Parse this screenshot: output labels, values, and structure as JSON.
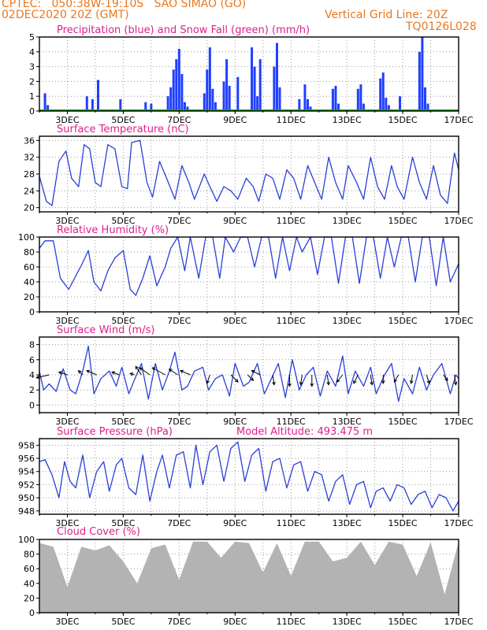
{
  "header": {
    "line1": "CPTEC:   050:38W-19:10S   SAO SIMAO (GO)",
    "line2": "02DEC2020 20Z (GMT)",
    "grid_note": "Vertical Grid Line: 20Z",
    "code": "TQ0126L028"
  },
  "colors": {
    "header": "#e8771f",
    "title": "#e01e8c",
    "precip": "#1f3fff",
    "snow": "#1e9e1e",
    "line": "#2a3fd8",
    "cloud": "#b3b3b3",
    "grid": "#9a9a9a"
  },
  "x_ticks": [
    "3DEC",
    "5DEC",
    "7DEC",
    "9DEC",
    "11DEC",
    "13DEC",
    "15DEC",
    "17DEC"
  ],
  "chart_data": [
    {
      "type": "bar",
      "title": "Precipitation (blue) and Snow Fall (green) (mm/h)",
      "ylim": [
        0,
        5
      ],
      "yticks": [
        0,
        1,
        2,
        3,
        4,
        5
      ],
      "series": [
        {
          "name": "Precipitation",
          "x": [
            2.2,
            2.3,
            3.7,
            3.9,
            4.1,
            4.9,
            5.8,
            6.0,
            6.6,
            6.7,
            6.8,
            6.9,
            7.0,
            7.1,
            7.2,
            7.3,
            7.9,
            8.0,
            8.1,
            8.2,
            8.3,
            8.6,
            8.7,
            8.8,
            9.1,
            9.6,
            9.7,
            9.8,
            9.9,
            10.4,
            10.5,
            10.6,
            11.3,
            11.5,
            11.6,
            11.7,
            12.5,
            12.6,
            12.7,
            13.4,
            13.5,
            13.6,
            14.2,
            14.3,
            14.4,
            14.5,
            14.9,
            15.6,
            15.7,
            15.8,
            15.9
          ],
          "values": [
            1.2,
            0.4,
            1.0,
            0.8,
            2.1,
            0.8,
            0.6,
            0.5,
            1.0,
            1.6,
            2.8,
            3.5,
            4.2,
            2.5,
            0.6,
            0.3,
            1.2,
            2.8,
            4.3,
            1.5,
            0.6,
            2.0,
            3.5,
            1.7,
            2.3,
            4.3,
            3.0,
            1.0,
            3.5,
            3.0,
            4.6,
            1.6,
            0.8,
            1.8,
            0.8,
            0.3,
            1.5,
            1.7,
            0.5,
            1.5,
            1.8,
            0.5,
            2.2,
            2.6,
            0.9,
            0.4,
            1.0,
            4.0,
            5.0,
            1.6,
            0.5
          ]
        },
        {
          "name": "Snow Fall",
          "x": [
            2.0,
            17.0
          ],
          "values": [
            0,
            0
          ]
        }
      ]
    },
    {
      "type": "line",
      "title": "Surface Temperature (nC)",
      "ylim": [
        19,
        37
      ],
      "yticks": [
        20,
        24,
        28,
        32,
        36
      ],
      "x": [
        2.0,
        2.25,
        2.45,
        2.7,
        2.95,
        3.15,
        3.4,
        3.6,
        3.8,
        4.0,
        4.2,
        4.45,
        4.7,
        4.95,
        5.15,
        5.3,
        5.6,
        5.85,
        6.05,
        6.3,
        6.55,
        6.85,
        7.1,
        7.35,
        7.55,
        7.9,
        8.1,
        8.35,
        8.6,
        8.85,
        9.1,
        9.4,
        9.65,
        9.85,
        10.1,
        10.35,
        10.6,
        10.85,
        11.1,
        11.35,
        11.6,
        11.85,
        12.1,
        12.35,
        12.6,
        12.85,
        13.05,
        13.35,
        13.6,
        13.85,
        14.1,
        14.35,
        14.6,
        14.8,
        15.05,
        15.35,
        15.6,
        15.85,
        16.1,
        16.35,
        16.6,
        16.85,
        17.0
      ],
      "values": [
        27.5,
        21.5,
        20.5,
        31,
        33.5,
        27,
        25,
        35,
        34,
        26,
        25,
        35,
        34,
        25,
        24.5,
        35.5,
        36,
        26,
        22.5,
        31,
        27,
        22,
        30,
        26,
        22,
        28,
        25,
        21.5,
        25,
        24,
        22,
        27,
        25,
        21.5,
        28,
        27,
        22,
        29,
        27,
        22,
        30,
        26,
        22,
        32,
        26,
        22,
        30,
        26,
        22,
        32,
        25,
        22,
        30,
        25,
        22,
        32,
        26,
        22,
        30,
        23,
        21,
        33,
        29
      ]
    },
    {
      "type": "line",
      "title": "Relative Humidity (%)",
      "ylim": [
        0,
        100
      ],
      "yticks": [
        0,
        20,
        40,
        60,
        80,
        100
      ],
      "x": [
        2.0,
        2.2,
        2.5,
        2.75,
        3.05,
        3.3,
        3.5,
        3.75,
        3.95,
        4.2,
        4.45,
        4.7,
        5.0,
        5.25,
        5.45,
        5.7,
        5.95,
        6.2,
        6.5,
        6.7,
        6.95,
        7.2,
        7.4,
        7.7,
        7.95,
        8.2,
        8.45,
        8.65,
        8.95,
        9.2,
        9.45,
        9.7,
        9.95,
        10.2,
        10.45,
        10.7,
        10.95,
        11.2,
        11.4,
        11.7,
        11.95,
        12.2,
        12.45,
        12.7,
        12.95,
        13.2,
        13.45,
        13.7,
        13.95,
        14.2,
        14.45,
        14.7,
        14.95,
        15.2,
        15.45,
        15.7,
        15.95,
        16.2,
        16.45,
        16.7,
        16.95,
        17.0
      ],
      "values": [
        85,
        95,
        95,
        45,
        30,
        48,
        62,
        82,
        40,
        28,
        55,
        72,
        82,
        30,
        22,
        45,
        75,
        35,
        60,
        85,
        100,
        55,
        100,
        45,
        100,
        100,
        45,
        100,
        80,
        100,
        100,
        60,
        100,
        100,
        45,
        100,
        55,
        100,
        80,
        100,
        50,
        100,
        100,
        38,
        100,
        100,
        38,
        100,
        100,
        45,
        100,
        60,
        100,
        100,
        40,
        100,
        100,
        35,
        100,
        40,
        60,
        65
      ]
    },
    {
      "type": "line",
      "title": "Surface Wind (m/s)",
      "ylim": [
        -1,
        9
      ],
      "yticks": [
        0,
        2,
        4,
        6,
        8
      ],
      "x": [
        2.0,
        2.15,
        2.35,
        2.6,
        2.85,
        3.1,
        3.3,
        3.55,
        3.75,
        3.95,
        4.2,
        4.5,
        4.75,
        4.95,
        5.2,
        5.45,
        5.65,
        5.9,
        6.15,
        6.4,
        6.65,
        6.85,
        7.1,
        7.3,
        7.55,
        7.85,
        8.05,
        8.3,
        8.55,
        8.8,
        9.0,
        9.3,
        9.5,
        9.8,
        10.05,
        10.3,
        10.55,
        10.8,
        11.05,
        11.3,
        11.55,
        11.8,
        12.05,
        12.3,
        12.6,
        12.85,
        13.05,
        13.3,
        13.6,
        13.85,
        14.05,
        14.35,
        14.6,
        14.85,
        15.05,
        15.35,
        15.6,
        15.85,
        16.1,
        16.4,
        16.7,
        16.9,
        17.0
      ],
      "values": [
        4.5,
        2.0,
        2.8,
        1.8,
        4.8,
        2.0,
        1.5,
        4.5,
        7.8,
        1.5,
        3.5,
        4.5,
        2.5,
        5.0,
        1.5,
        3.8,
        5.5,
        0.8,
        5.5,
        2.0,
        4.5,
        7.0,
        2.0,
        2.5,
        4.5,
        5.0,
        2.0,
        3.5,
        4.0,
        1.2,
        5.5,
        2.5,
        3.0,
        5.5,
        1.5,
        3.5,
        5.5,
        1.0,
        6.0,
        2.0,
        4.0,
        5.0,
        1.2,
        4.5,
        2.5,
        6.5,
        1.5,
        4.5,
        2.5,
        5.0,
        1.5,
        4.0,
        5.5,
        0.5,
        3.5,
        1.5,
        5.0,
        2.0,
        4.0,
        5.5,
        1.5,
        4.0,
        3.5
      ],
      "arrows": {
        "x": [
          2.35,
          3.0,
          3.55,
          4.05,
          4.85,
          5.4,
          5.65,
          5.95,
          6.5,
          6.95,
          7.4,
          8.1,
          8.85,
          9.45,
          9.9,
          10.35,
          10.95,
          11.4,
          11.75,
          12.3,
          12.85,
          13.4,
          13.85,
          14.3,
          14.85,
          15.35,
          15.85,
          16.45,
          16.85
        ],
        "u": [
          -0.9,
          -0.6,
          -0.3,
          -0.7,
          -0.5,
          -0.3,
          -0.4,
          -0.7,
          -0.9,
          -0.6,
          -0.7,
          -0.2,
          0.5,
          0.4,
          -0.6,
          0.1,
          0.0,
          -0.1,
          0.0,
          0.1,
          -0.4,
          -0.3,
          0.1,
          0.0,
          -0.3,
          -0.1,
          0.2,
          0.3,
          0.1
        ],
        "v": [
          -0.2,
          0.2,
          0.3,
          0.3,
          0.2,
          0.1,
          0.6,
          0.5,
          0.5,
          0.4,
          0.3,
          -0.6,
          -0.5,
          -0.4,
          0.3,
          -0.7,
          -0.8,
          -0.7,
          -0.8,
          -0.7,
          -0.5,
          -0.6,
          -0.7,
          -0.6,
          -0.5,
          -0.6,
          -0.6,
          -0.4,
          -0.7
        ]
      }
    },
    {
      "type": "line",
      "title": "Surface Pressure (hPa)",
      "subtitle": "Model Altitude: 493.475 m",
      "ylim": [
        947.5,
        959
      ],
      "yticks": [
        948,
        950,
        952,
        954,
        956,
        958
      ],
      "x": [
        2.0,
        2.2,
        2.45,
        2.7,
        2.9,
        3.1,
        3.3,
        3.55,
        3.8,
        4.05,
        4.3,
        4.5,
        4.75,
        4.95,
        5.2,
        5.45,
        5.7,
        5.95,
        6.2,
        6.4,
        6.65,
        6.9,
        7.15,
        7.4,
        7.6,
        7.85,
        8.1,
        8.35,
        8.6,
        8.85,
        9.1,
        9.35,
        9.6,
        9.85,
        10.1,
        10.35,
        10.6,
        10.85,
        11.1,
        11.35,
        11.6,
        11.85,
        12.1,
        12.35,
        12.6,
        12.85,
        13.1,
        13.35,
        13.6,
        13.85,
        14.05,
        14.3,
        14.55,
        14.8,
        15.05,
        15.3,
        15.55,
        15.8,
        16.05,
        16.3,
        16.55,
        16.8,
        17.0
      ],
      "values": [
        955.5,
        955.8,
        953.5,
        950,
        955.5,
        952.5,
        951.5,
        956.5,
        950,
        954,
        955.5,
        951,
        955,
        956,
        951.5,
        950.5,
        956.5,
        949.5,
        954,
        956.5,
        951.5,
        956.5,
        957,
        951.5,
        958,
        952,
        957,
        958,
        952.5,
        957.5,
        958.5,
        952.5,
        956.5,
        957.5,
        951,
        955.5,
        956,
        951.5,
        955,
        955.5,
        951,
        954,
        953.5,
        949.5,
        952.5,
        953.5,
        949,
        952,
        952.5,
        948.5,
        951,
        951.5,
        949.5,
        952,
        951.5,
        949,
        950.5,
        951,
        948.5,
        950.5,
        950,
        948,
        949.5
      ]
    },
    {
      "type": "bar",
      "title": "Cloud Cover (%)",
      "ylim": [
        0,
        100
      ],
      "yticks": [
        0,
        20,
        40,
        60,
        80,
        100
      ],
      "x": [
        2.0,
        2.5,
        3.0,
        3.5,
        4.0,
        4.5,
        5.0,
        5.5,
        6.0,
        6.5,
        7.0,
        7.5,
        8.0,
        8.5,
        9.0,
        9.5,
        10.0,
        10.5,
        11.0,
        11.5,
        12.0,
        12.5,
        13.0,
        13.5,
        14.0,
        14.5,
        15.0,
        15.5,
        16.0,
        16.5,
        17.0
      ],
      "values": [
        95,
        90,
        35,
        90,
        85,
        92,
        70,
        40,
        88,
        93,
        45,
        97,
        97,
        75,
        97,
        95,
        55,
        95,
        50,
        97,
        97,
        70,
        75,
        97,
        65,
        97,
        93,
        50,
        96,
        25,
        97
      ]
    }
  ]
}
